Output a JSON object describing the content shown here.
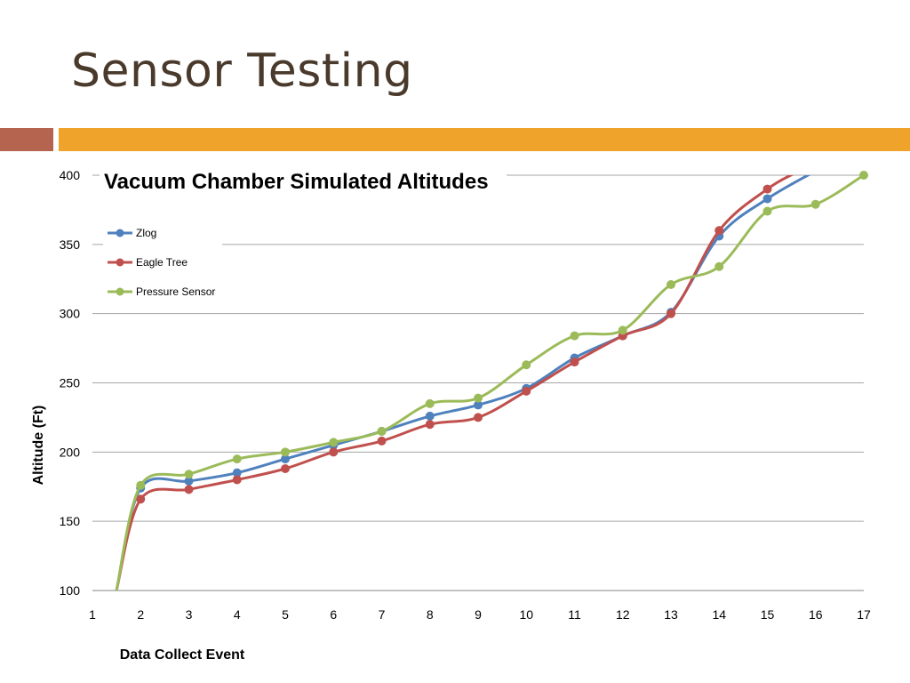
{
  "slide": {
    "title": "Sensor Testing"
  },
  "colors": {
    "accent_left": "#b5654f",
    "accent_bar": "#f0a32a"
  },
  "chart_data": {
    "type": "line",
    "title": "Vacuum Chamber Simulated Altitudes",
    "xlabel": "Data Collect Event",
    "ylabel": "Altitude (Ft)",
    "xlim": [
      1,
      17
    ],
    "ylim": [
      100,
      400
    ],
    "x_ticks": [
      "1",
      "2",
      "3",
      "4",
      "5",
      "6",
      "7",
      "8",
      "9",
      "10",
      "11",
      "12",
      "13",
      "14",
      "15",
      "16",
      "17"
    ],
    "y_ticks": [
      "100",
      "150",
      "200",
      "250",
      "300",
      "350",
      "400"
    ],
    "grid": "horizontal",
    "legend": "top-left",
    "series": [
      {
        "name": "Zlog",
        "color": "#4f81bd",
        "x": [
          1.5,
          2,
          3,
          4,
          5,
          6,
          7,
          8,
          9,
          10,
          11,
          12,
          13,
          14,
          15,
          16
        ],
        "y": [
          100,
          174,
          179,
          185,
          195,
          205,
          215,
          226,
          234,
          246,
          268,
          284,
          301,
          356,
          383,
          403
        ],
        "marker_from": 1
      },
      {
        "name": "Eagle Tree",
        "color": "#c0504d",
        "x": [
          1.5,
          2,
          3,
          4,
          5,
          6,
          7,
          8,
          9,
          10,
          11,
          12,
          13,
          14,
          15,
          15.6
        ],
        "y": [
          100,
          166,
          173,
          180,
          188,
          200,
          208,
          220,
          225,
          244,
          265,
          284,
          300,
          360,
          390,
          402
        ],
        "marker_from": 1,
        "marker_to": 15
      },
      {
        "name": "Pressure Sensor",
        "color": "#9bbb59",
        "x": [
          1.5,
          2,
          3,
          4,
          5,
          6,
          7,
          8,
          9,
          10,
          11,
          12,
          13,
          14,
          15,
          16,
          17
        ],
        "y": [
          100,
          176,
          184,
          195,
          200,
          207,
          215,
          235,
          239,
          263,
          284,
          288,
          321,
          334,
          374,
          379,
          400
        ],
        "marker_from": 1
      }
    ]
  }
}
